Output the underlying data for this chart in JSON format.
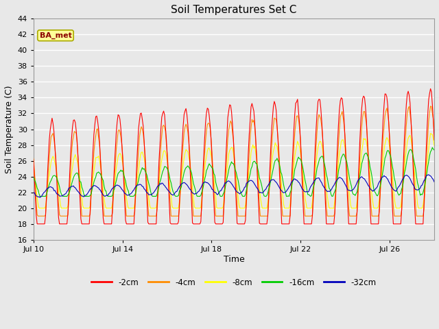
{
  "title": "Soil Temperatures Set C",
  "xlabel": "Time",
  "ylabel": "Soil Temperature (C)",
  "ylim": [
    16,
    44
  ],
  "yticks": [
    16,
    18,
    20,
    22,
    24,
    26,
    28,
    30,
    32,
    34,
    36,
    38,
    40,
    42,
    44
  ],
  "colors": {
    "-2cm": "#FF0000",
    "-4cm": "#FF8C00",
    "-8cm": "#FFFF00",
    "-16cm": "#00CC00",
    "-32cm": "#0000BB"
  },
  "legend_label": "BA_met",
  "legend_box_color": "#FFFF99",
  "legend_box_border": "#AAAA00",
  "background_color": "#E8E8E8",
  "plot_bg_color": "#E8E8E8",
  "grid_color": "#FFFFFF",
  "series_labels": [
    "-2cm",
    "-4cm",
    "-8cm",
    "-16cm",
    "-32cm"
  ],
  "xtick_positions": [
    10,
    14,
    18,
    22,
    26
  ],
  "xtick_labels": [
    "Jul 10",
    "Jul 14",
    "Jul 18",
    "Jul 22",
    "Jul 26"
  ],
  "xlim": [
    10,
    28
  ]
}
